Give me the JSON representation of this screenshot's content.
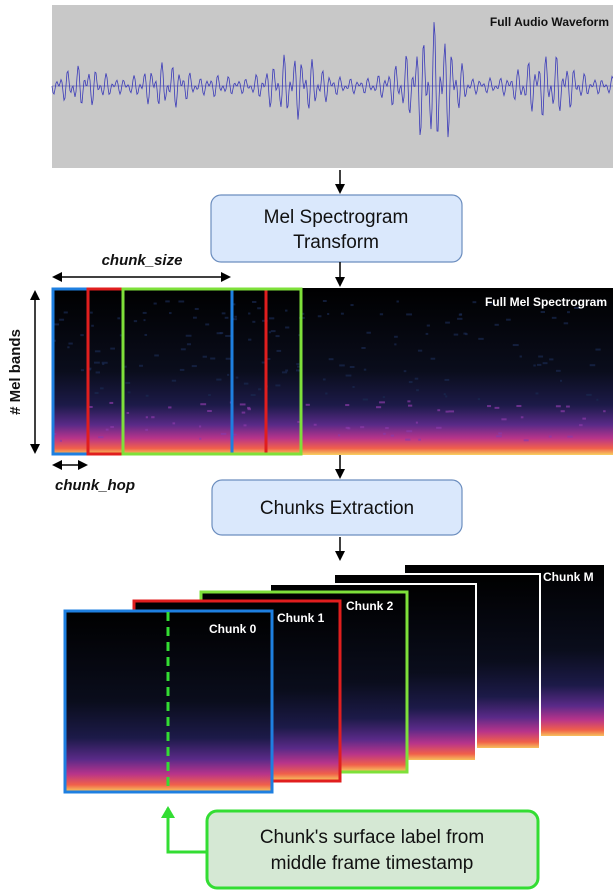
{
  "waveform": {
    "label": "Full Audio Waveform"
  },
  "transform_box": {
    "label_lines": [
      "Mel Spectrogram",
      "Transform"
    ]
  },
  "chunk_size_label": "chunk_size",
  "mel_bands_label": "# Mel bands",
  "spectrogram": {
    "label": "Full Mel Spectrogram"
  },
  "chunk_hop_label": "chunk_hop",
  "extraction_box": {
    "label": "Chunks Extraction"
  },
  "chunks": [
    "Chunk 0",
    "Chunk 1",
    "Chunk 2",
    "Chunk M"
  ],
  "result_box": {
    "label_lines": [
      "Chunk's surface label from",
      "middle frame timestamp"
    ]
  }
}
